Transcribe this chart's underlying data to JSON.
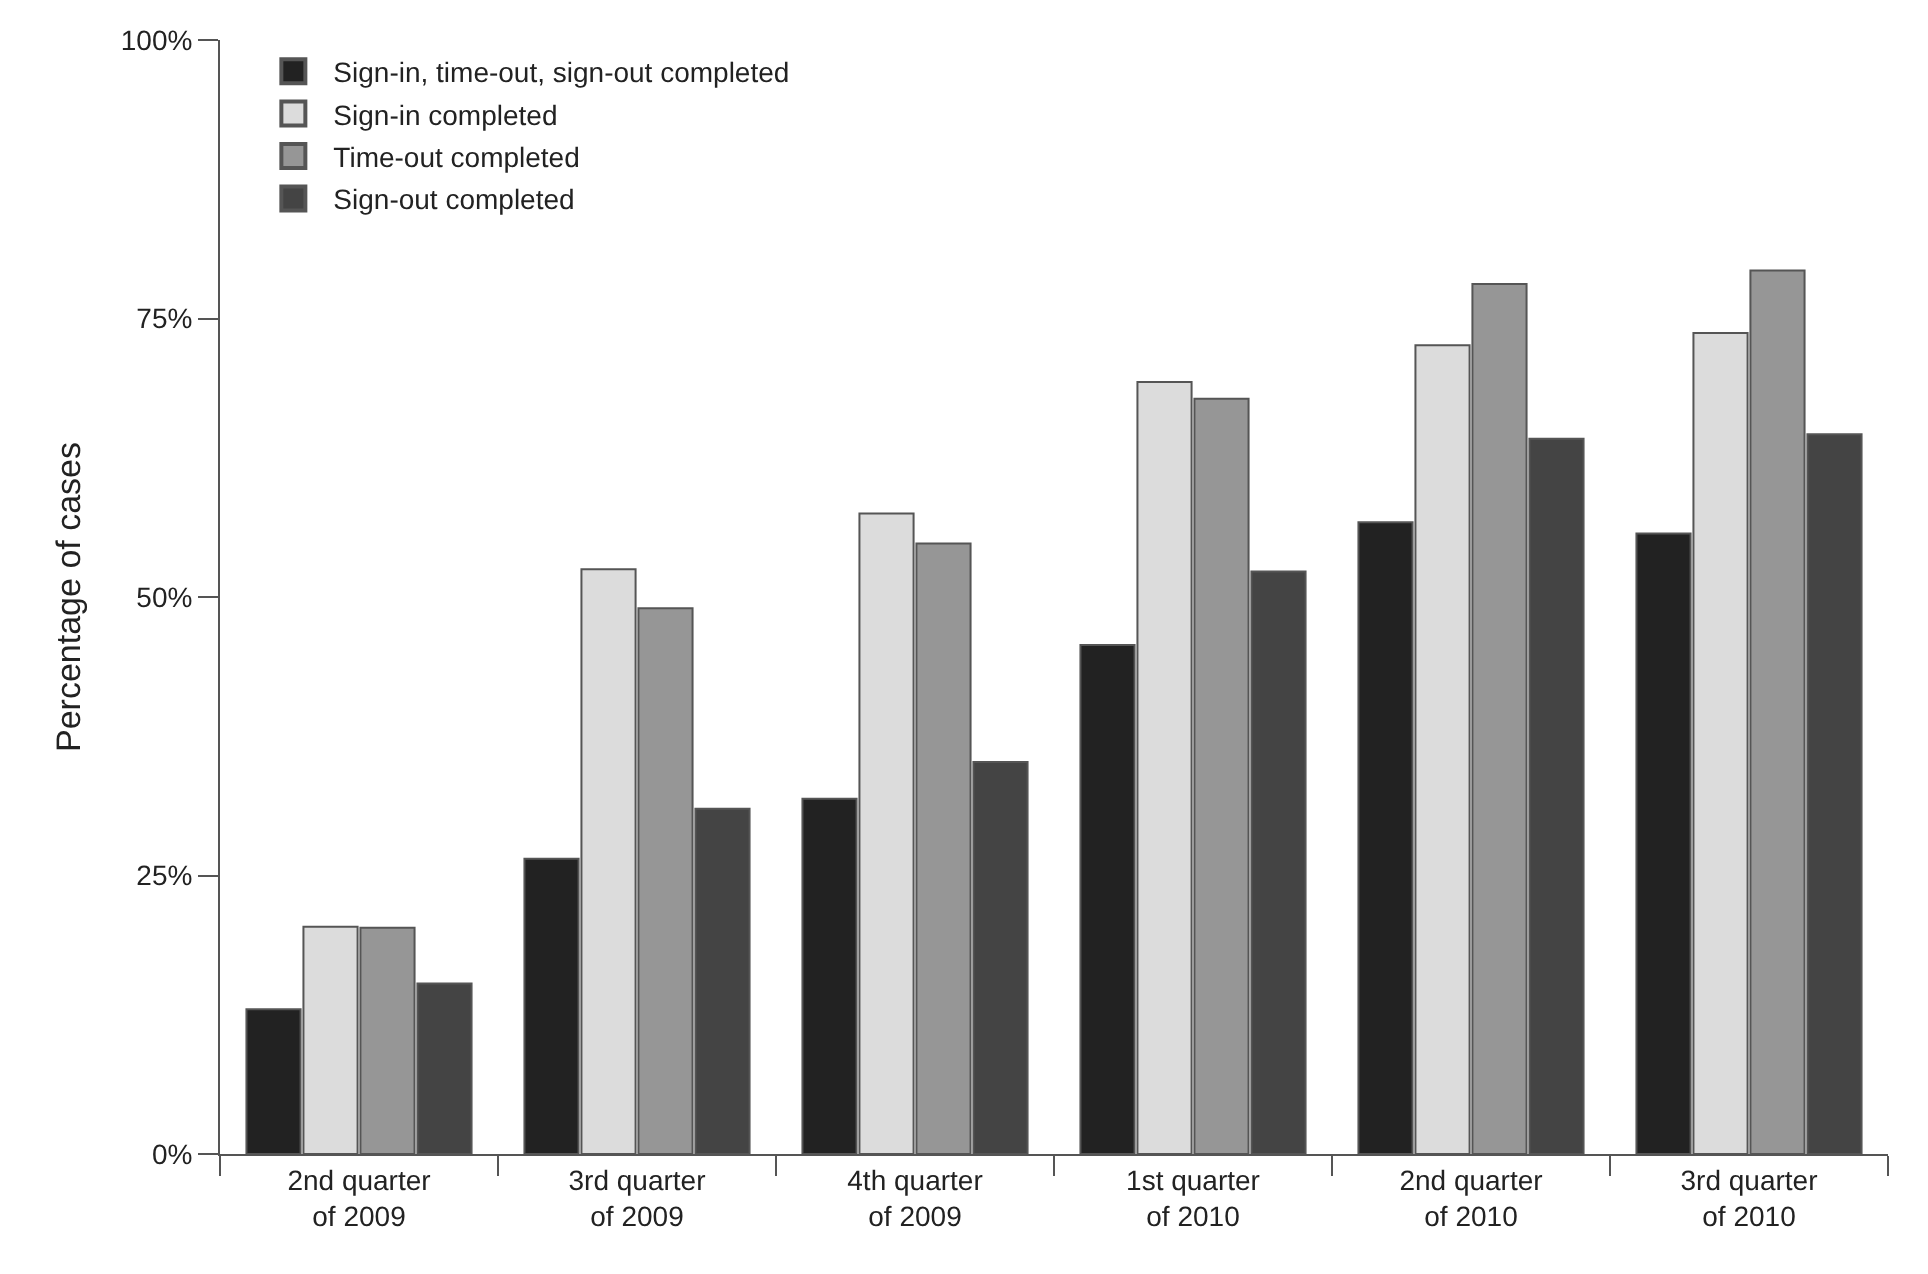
{
  "chart_data": {
    "type": "bar",
    "ylabel": "Percentage of cases",
    "categories": [
      "2nd quarter\nof 2009",
      "3rd quarter\nof 2009",
      "4th quarter\nof 2009",
      "1st quarter\nof 2010",
      "2nd quarter\nof 2010",
      "3rd quarter\nof 2010"
    ],
    "series": [
      {
        "name": "Sign-in, time-out, sign-out completed",
        "color": "#222222",
        "values": [
          13.0,
          26.5,
          31.9,
          45.7,
          56.7,
          55.7
        ]
      },
      {
        "name": "Sign-in completed",
        "color": "#dcdcdc",
        "values": [
          20.4,
          52.5,
          57.5,
          69.3,
          72.6,
          73.7
        ]
      },
      {
        "name": "Time-out completed",
        "color": "#969696",
        "values": [
          20.3,
          49.0,
          54.8,
          67.8,
          78.1,
          79.3
        ]
      },
      {
        "name": "Sign-out completed",
        "color": "#444444",
        "values": [
          15.3,
          31.0,
          35.2,
          52.3,
          64.2,
          64.6
        ]
      }
    ],
    "ylim": [
      0,
      100
    ],
    "yticks": [
      {
        "value": 0,
        "label": "0%"
      },
      {
        "value": 25,
        "label": "25%"
      },
      {
        "value": 50,
        "label": "50%"
      },
      {
        "value": 75,
        "label": "75%"
      },
      {
        "value": 100,
        "label": "100%"
      }
    ],
    "legend": "top left"
  }
}
